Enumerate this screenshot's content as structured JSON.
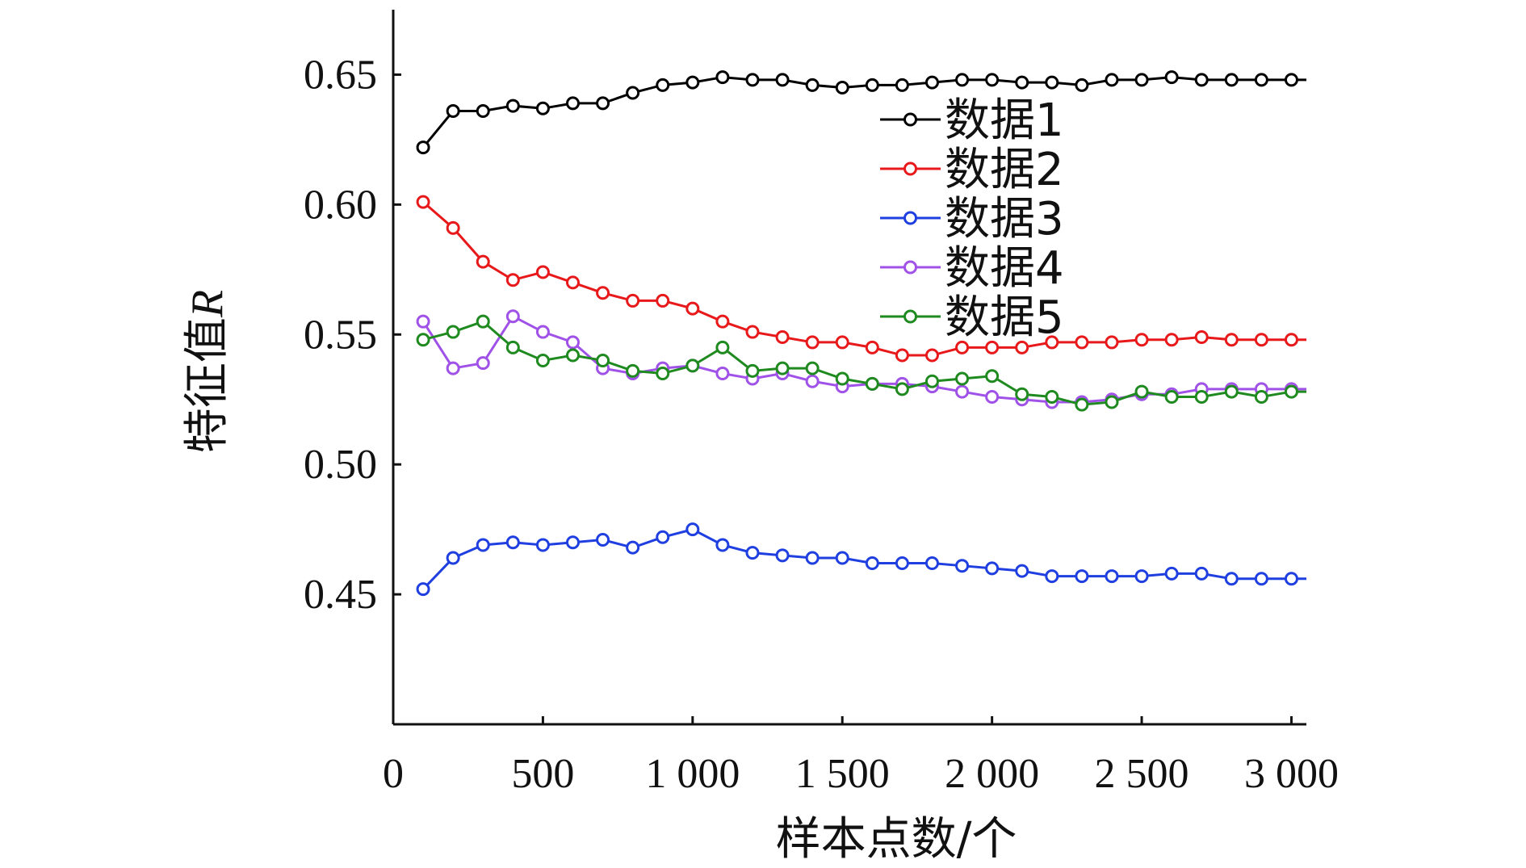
{
  "chart_data": {
    "type": "line",
    "xlabel": "样本点数/个",
    "ylabel_main": "特征值",
    "ylabel_var": "R",
    "xlim": [
      0,
      3050
    ],
    "ylim": [
      0.4,
      0.675
    ],
    "x_ticks": [
      0,
      500,
      1000,
      1500,
      2000,
      2500,
      3000
    ],
    "x_tick_labels": [
      "0",
      "500",
      "1 000",
      "1 500",
      "2 000",
      "2 500",
      "3 000"
    ],
    "y_ticks": [
      0.45,
      0.5,
      0.55,
      0.6,
      0.65
    ],
    "y_tick_labels": [
      "0.45",
      "0.50",
      "0.55",
      "0.60",
      "0.65"
    ],
    "legend_position": "upper-center-right",
    "x": [
      100,
      200,
      300,
      400,
      500,
      600,
      700,
      800,
      900,
      1000,
      1100,
      1200,
      1300,
      1400,
      1500,
      1600,
      1700,
      1800,
      1900,
      2000,
      2100,
      2200,
      2300,
      2400,
      2500,
      2600,
      2700,
      2800,
      2900,
      3000
    ],
    "series": [
      {
        "name": "数据1",
        "color": "#000000",
        "values": [
          0.622,
          0.636,
          0.636,
          0.638,
          0.637,
          0.639,
          0.639,
          0.643,
          0.646,
          0.647,
          0.649,
          0.648,
          0.648,
          0.646,
          0.645,
          0.646,
          0.646,
          0.647,
          0.648,
          0.648,
          0.647,
          0.647,
          0.646,
          0.648,
          0.648,
          0.649,
          0.648,
          0.648,
          0.648,
          0.648
        ]
      },
      {
        "name": "数据2",
        "color": "#e8191b",
        "values": [
          0.601,
          0.591,
          0.578,
          0.571,
          0.574,
          0.57,
          0.566,
          0.563,
          0.563,
          0.56,
          0.555,
          0.551,
          0.549,
          0.547,
          0.547,
          0.545,
          0.542,
          0.542,
          0.545,
          0.545,
          0.545,
          0.547,
          0.547,
          0.547,
          0.548,
          0.548,
          0.549,
          0.548,
          0.548,
          0.548
        ]
      },
      {
        "name": "数据3",
        "color": "#1f3fe0",
        "values": [
          0.452,
          0.464,
          0.469,
          0.47,
          0.469,
          0.47,
          0.471,
          0.468,
          0.472,
          0.475,
          0.469,
          0.466,
          0.465,
          0.464,
          0.464,
          0.462,
          0.462,
          0.462,
          0.461,
          0.46,
          0.459,
          0.457,
          0.457,
          0.457,
          0.457,
          0.458,
          0.458,
          0.456,
          0.456,
          0.456
        ]
      },
      {
        "name": "数据4",
        "color": "#a052e8",
        "values": [
          0.555,
          0.537,
          0.539,
          0.557,
          0.551,
          0.547,
          0.537,
          0.535,
          0.537,
          0.538,
          0.535,
          0.533,
          0.535,
          0.532,
          0.53,
          0.531,
          0.531,
          0.53,
          0.528,
          0.526,
          0.525,
          0.524,
          0.524,
          0.525,
          0.527,
          0.527,
          0.529,
          0.529,
          0.529,
          0.529
        ]
      },
      {
        "name": "数据5",
        "color": "#1f8a1f",
        "values": [
          0.548,
          0.551,
          0.555,
          0.545,
          0.54,
          0.542,
          0.54,
          0.536,
          0.535,
          0.538,
          0.545,
          0.536,
          0.537,
          0.537,
          0.533,
          0.531,
          0.529,
          0.532,
          0.533,
          0.534,
          0.527,
          0.526,
          0.523,
          0.524,
          0.528,
          0.526,
          0.526,
          0.528,
          0.526,
          0.528
        ]
      }
    ]
  }
}
